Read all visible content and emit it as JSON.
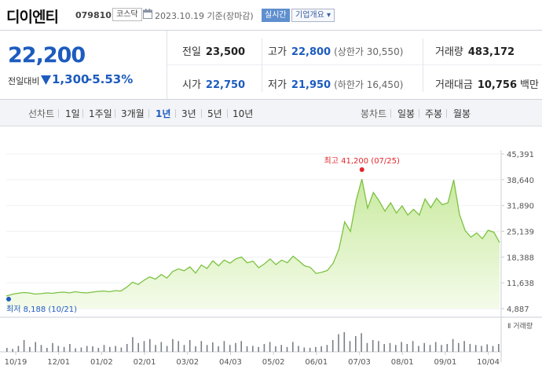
{
  "header": {
    "name": "디이엔티",
    "code": "079810",
    "market": "코스닥",
    "date": "2023.10.19 기준(장마감)",
    "realtime": "실시간",
    "overview": "기업개요 ▾"
  },
  "price": {
    "current": "22,200",
    "vs_label": "전일대비",
    "change": "1,300",
    "change_pct": "-5.53%"
  },
  "stats": {
    "prev_label": "전일",
    "prev": "23,500",
    "high_label": "고가",
    "high": "22,800",
    "upper_limit": "(상한가 30,550)",
    "volume_label": "거래량",
    "volume": "483,172",
    "open_label": "시가",
    "open": "22,750",
    "low_label": "저가",
    "low": "21,950",
    "lower_limit": "(하한가 16,450)",
    "amount_label": "거래대금",
    "amount": "10,756",
    "amount_unit": "백만"
  },
  "periods": {
    "line_label": "선차트",
    "items": [
      "1일",
      "1주일",
      "3개월",
      "1년",
      "3년",
      "5년",
      "10년"
    ],
    "selected": "1년",
    "candle_label": "봉차트",
    "candles": [
      "일봉",
      "주봉",
      "월봉"
    ]
  },
  "colors": {
    "accent": "#1d5bbf",
    "line": "#7cc241",
    "fill": "#dff2c9",
    "max": "#e3262c"
  },
  "chart_data": {
    "type": "area",
    "y_ticks": [
      "45,391",
      "38,640",
      "31,890",
      "25,139",
      "18,388",
      "11,638",
      "4,887"
    ],
    "ylim": [
      4887,
      45391
    ],
    "x_ticks": [
      "10/19",
      "12/01",
      "01/02",
      "02/01",
      "03/02",
      "04/03",
      "05/02",
      "06/01",
      "07/03",
      "08/01",
      "09/01",
      "10/04"
    ],
    "max_label": "최고 41,200 (07/25)",
    "min_label": "최저 8,188 (10/21)",
    "volume_label": "거래량",
    "series": [
      {
        "values": [
          8190,
          8600,
          8900,
          9100,
          9000,
          8700,
          8800,
          9000,
          8900,
          9100,
          9200,
          9000,
          9300,
          9100,
          9000,
          9200,
          9400,
          9500,
          9300,
          9600,
          9500,
          10500,
          11800,
          11200,
          12300,
          13200,
          12600,
          13800,
          12900,
          14600,
          15300,
          14800,
          15800,
          14200,
          16300,
          15400,
          17400,
          16100,
          17600,
          16800,
          17900,
          18400,
          16900,
          17300,
          15600,
          16600,
          17900,
          16400,
          17600,
          16900,
          18600,
          17400,
          16100,
          15700,
          14100,
          14400,
          14900,
          16800,
          20500,
          27600,
          25100,
          33200,
          38800,
          31200,
          35300,
          33100,
          30400,
          32600,
          29900,
          31800,
          29400,
          30900,
          29400,
          33600,
          31300,
          33800,
          32100,
          32600,
          38600,
          29600,
          25300,
          23600,
          24700,
          23200,
          25400,
          24900,
          22200
        ]
      }
    ],
    "volume": [
      20,
      15,
      30,
      60,
      25,
      50,
      35,
      20,
      45,
      30,
      25,
      40,
      18,
      22,
      30,
      28,
      20,
      35,
      25,
      30,
      22,
      40,
      75,
      45,
      55,
      65,
      35,
      50,
      30,
      65,
      55,
      35,
      60,
      28,
      55,
      35,
      48,
      28,
      55,
      35,
      45,
      55,
      28,
      30,
      25,
      40,
      50,
      28,
      35,
      25,
      50,
      30,
      22,
      20,
      25,
      28,
      35,
      60,
      90,
      100,
      55,
      80,
      95,
      45,
      60,
      55,
      40,
      45,
      35,
      50,
      40,
      55,
      30,
      45,
      35,
      50,
      35,
      40,
      65,
      45,
      55,
      40,
      35,
      30,
      38,
      30,
      40
    ]
  }
}
